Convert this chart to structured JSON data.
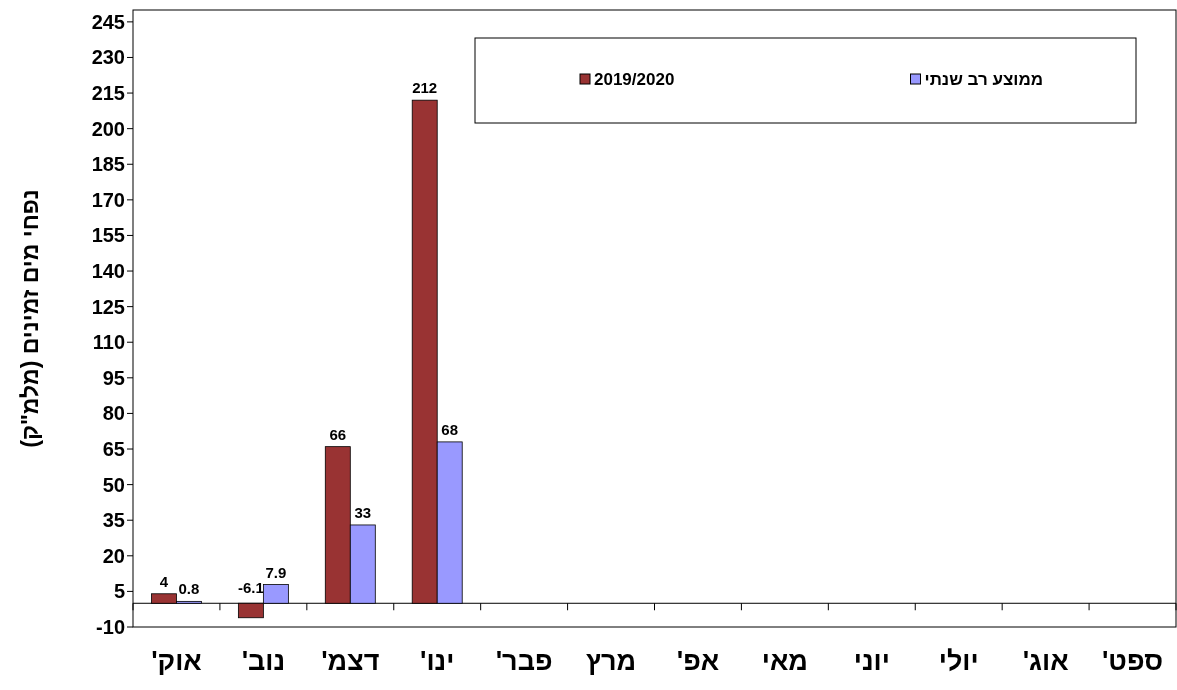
{
  "chart_data": {
    "type": "bar",
    "ylabel": "נפחי מים זמינים (מלמ\"ק)",
    "categories": [
      "אוק'",
      "נוב'",
      "דצמ'",
      "ינו'",
      "פבר'",
      "מרץ",
      "אפ'",
      "מאי",
      "יוני",
      "יולי",
      "אוג'",
      "ספט'"
    ],
    "series": [
      {
        "name": "2019/2020",
        "color": "#993333",
        "values": [
          4,
          -6.1,
          66,
          212,
          null,
          null,
          null,
          null,
          null,
          null,
          null,
          null
        ]
      },
      {
        "name": "ממוצע רב שנתי",
        "color": "#9999ff",
        "values": [
          0.8,
          7.9,
          33,
          68,
          null,
          null,
          null,
          null,
          null,
          null,
          null,
          null
        ]
      }
    ],
    "ylim": [
      -10,
      250
    ],
    "yticks": [
      -10,
      5,
      20,
      35,
      50,
      65,
      80,
      95,
      110,
      125,
      140,
      155,
      170,
      185,
      200,
      215,
      230,
      245
    ],
    "data_labels": true,
    "legend": "top right"
  }
}
